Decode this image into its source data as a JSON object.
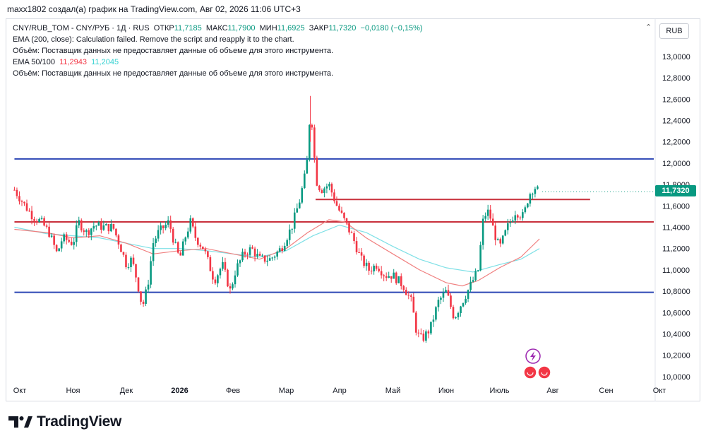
{
  "header": {
    "text": "maxx1802 создал(а) график на TradingView.com, Авг 02, 2026 11:06 UTC+3"
  },
  "legend": {
    "symbol": "CNY/RUB_TOM - CNY/РУБ · 1Д · RUS",
    "o_label": "ОТКР",
    "o_val": "11,7185",
    "h_label": "МАКС",
    "h_val": "11,7900",
    "l_label": "МИН",
    "l_val": "11,6925",
    "c_label": "ЗАКР",
    "c_val": "11,7320",
    "change": "−0,0180 (−0,15%)",
    "ema200": "EMA (200, close): Calculation failed. Remove the script and reapply it to the chart.",
    "volume1": "Объём: Поставщик данных не предоставляет данные об объеме для этого инструмента.",
    "ema_label": "EMA 50/100",
    "ema50_val": "11,2943",
    "ema100_val": "11,2045",
    "volume2": "Объём: Поставщик данных не предоставляет данные об объеме для этого инструмента."
  },
  "currency": "RUB",
  "logo_text": "TradingView",
  "chart_data": {
    "type": "candlestick",
    "y_ticks": [
      "13,0000",
      "12,8000",
      "12,6000",
      "12,4000",
      "12,2000",
      "12,0000",
      "11,8000",
      "11,6000",
      "11,4000",
      "11,2000",
      "11,0000",
      "10,8000",
      "10,6000",
      "10,4000",
      "10,2000",
      "10,0000"
    ],
    "y_tick_values": [
      13.0,
      12.8,
      12.6,
      12.4,
      12.2,
      12.0,
      11.8,
      11.6,
      11.4,
      11.2,
      11.0,
      10.8,
      10.6,
      10.4,
      10.2,
      10.0
    ],
    "ylim": [
      9.94,
      13.35
    ],
    "x_ticks": [
      "Окт",
      "Ноя",
      "Дек",
      "2026",
      "Фев",
      "Мар",
      "Апр",
      "Май",
      "Июн",
      "Июль",
      "Авг",
      "Сен",
      "Окт"
    ],
    "x_tick_months": [
      0,
      1,
      2,
      3,
      4,
      5,
      6,
      7,
      8,
      9,
      10,
      11,
      12
    ],
    "last_price": "11,7320",
    "last_value": 11.732,
    "horizontal_levels": [
      {
        "value": 12.04,
        "color": "#2d47b5",
        "from_month": -0.1,
        "to_month": 12.6
      },
      {
        "value": 11.45,
        "color": "#c8303c",
        "from_month": -0.1,
        "to_month": 12.6
      },
      {
        "value": 10.79,
        "color": "#2d47b5",
        "from_month": -0.1,
        "to_month": 12.6
      },
      {
        "value": 11.66,
        "color": "#c8303c",
        "from_month": 5.55,
        "to_month": 10.7
      }
    ],
    "price_path": [
      [
        -0.1,
        11.75
      ],
      [
        0.1,
        11.6
      ],
      [
        0.25,
        11.5
      ],
      [
        0.4,
        11.45
      ],
      [
        0.55,
        11.35
      ],
      [
        0.7,
        11.15
      ],
      [
        0.8,
        11.3
      ],
      [
        1.0,
        11.25
      ],
      [
        1.1,
        11.45
      ],
      [
        1.25,
        11.35
      ],
      [
        1.4,
        11.42
      ],
      [
        1.6,
        11.4
      ],
      [
        1.75,
        11.4
      ],
      [
        1.9,
        11.2
      ],
      [
        2.0,
        11.05
      ],
      [
        2.1,
        11.1
      ],
      [
        2.2,
        10.9
      ],
      [
        2.3,
        10.65
      ],
      [
        2.4,
        10.85
      ],
      [
        2.5,
        11.25
      ],
      [
        2.6,
        11.35
      ],
      [
        2.8,
        11.45
      ],
      [
        2.9,
        11.25
      ],
      [
        3.0,
        11.1
      ],
      [
        3.1,
        11.3
      ],
      [
        3.2,
        11.45
      ],
      [
        3.3,
        11.3
      ],
      [
        3.45,
        11.2
      ],
      [
        3.55,
        11.05
      ],
      [
        3.65,
        10.9
      ],
      [
        3.8,
        11.05
      ],
      [
        3.95,
        10.8
      ],
      [
        4.05,
        11.0
      ],
      [
        4.2,
        11.15
      ],
      [
        4.35,
        11.2
      ],
      [
        4.5,
        11.1
      ],
      [
        4.7,
        11.1
      ],
      [
        4.9,
        11.2
      ],
      [
        5.1,
        11.4
      ],
      [
        5.25,
        11.65
      ],
      [
        5.38,
        11.95
      ],
      [
        5.45,
        12.5
      ],
      [
        5.5,
        12.3
      ],
      [
        5.55,
        11.85
      ],
      [
        5.65,
        11.75
      ],
      [
        5.8,
        11.8
      ],
      [
        5.95,
        11.6
      ],
      [
        6.1,
        11.45
      ],
      [
        6.25,
        11.3
      ],
      [
        6.4,
        11.1
      ],
      [
        6.55,
        11.0
      ],
      [
        6.7,
        11.05
      ],
      [
        6.85,
        10.95
      ],
      [
        7.0,
        10.95
      ],
      [
        7.2,
        10.85
      ],
      [
        7.35,
        10.7
      ],
      [
        7.45,
        10.4
      ],
      [
        7.55,
        10.35
      ],
      [
        7.7,
        10.45
      ],
      [
        7.85,
        10.7
      ],
      [
        8.0,
        10.8
      ],
      [
        8.15,
        10.55
      ],
      [
        8.3,
        10.7
      ],
      [
        8.45,
        10.85
      ],
      [
        8.6,
        11.0
      ],
      [
        8.7,
        11.5
      ],
      [
        8.8,
        11.55
      ],
      [
        8.9,
        11.35
      ],
      [
        9.0,
        11.2
      ],
      [
        9.15,
        11.4
      ],
      [
        9.3,
        11.55
      ],
      [
        9.45,
        11.5
      ],
      [
        9.55,
        11.7
      ],
      [
        9.65,
        11.78
      ],
      [
        9.75,
        11.73
      ]
    ],
    "ema50": [
      [
        -0.1,
        11.38
      ],
      [
        0.5,
        11.35
      ],
      [
        1.0,
        11.3
      ],
      [
        1.5,
        11.32
      ],
      [
        2.0,
        11.25
      ],
      [
        2.5,
        11.15
      ],
      [
        3.0,
        11.18
      ],
      [
        3.5,
        11.2
      ],
      [
        4.0,
        11.15
      ],
      [
        4.5,
        11.1
      ],
      [
        5.0,
        11.2
      ],
      [
        5.4,
        11.35
      ],
      [
        5.8,
        11.47
      ],
      [
        6.1,
        11.45
      ],
      [
        6.5,
        11.3
      ],
      [
        7.0,
        11.15
      ],
      [
        7.5,
        11.0
      ],
      [
        8.0,
        10.88
      ],
      [
        8.3,
        10.85
      ],
      [
        8.6,
        10.9
      ],
      [
        9.0,
        11.02
      ],
      [
        9.4,
        11.12
      ],
      [
        9.75,
        11.29
      ]
    ],
    "ema100": [
      [
        -0.1,
        11.4
      ],
      [
        0.5,
        11.34
      ],
      [
        1.0,
        11.32
      ],
      [
        1.5,
        11.3
      ],
      [
        2.0,
        11.25
      ],
      [
        2.5,
        11.2
      ],
      [
        3.0,
        11.2
      ],
      [
        3.5,
        11.18
      ],
      [
        4.0,
        11.15
      ],
      [
        4.5,
        11.12
      ],
      [
        5.0,
        11.18
      ],
      [
        5.5,
        11.32
      ],
      [
        6.0,
        11.42
      ],
      [
        6.5,
        11.35
      ],
      [
        7.0,
        11.22
      ],
      [
        7.5,
        11.1
      ],
      [
        8.0,
        11.02
      ],
      [
        8.5,
        10.98
      ],
      [
        9.0,
        11.05
      ],
      [
        9.4,
        11.1
      ],
      [
        9.75,
        11.2
      ]
    ],
    "colors": {
      "up": "#089981",
      "down": "#f23645",
      "ema50": "#f08080",
      "ema100": "#7ee0e6"
    }
  }
}
